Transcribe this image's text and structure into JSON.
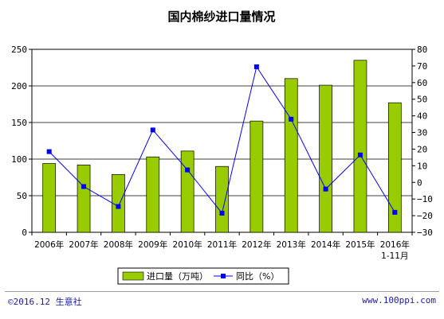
{
  "chart_data": {
    "type": "bar+line",
    "title": "国内棉纱进口量情况",
    "categories": [
      "2006年",
      "2007年",
      "2008年",
      "2009年",
      "2010年",
      "2011年",
      "2012年",
      "2013年",
      "2014年",
      "2015年",
      "2016年\n1-11月"
    ],
    "series": [
      {
        "name": "进口量（万吨）",
        "type": "bar",
        "axis": "left",
        "color": "#99cc00",
        "values": [
          94,
          92,
          79,
          103,
          111,
          90,
          152,
          210,
          201,
          235,
          177
        ]
      },
      {
        "name": "同比（%）",
        "type": "line",
        "axis": "right",
        "color": "#0000ff",
        "values": [
          18.5,
          -2.5,
          -14.5,
          31.5,
          7.5,
          -18.5,
          69.5,
          38,
          -4,
          16.5,
          -18
        ]
      }
    ],
    "y_left": {
      "min": 0,
      "max": 250,
      "step": 50
    },
    "y_right": {
      "min": -30,
      "max": 80,
      "step": 10
    },
    "grid": true,
    "legend_position": "bottom"
  },
  "footer": {
    "left": "©2016.12 生意社",
    "right": "www.100ppi.com"
  }
}
